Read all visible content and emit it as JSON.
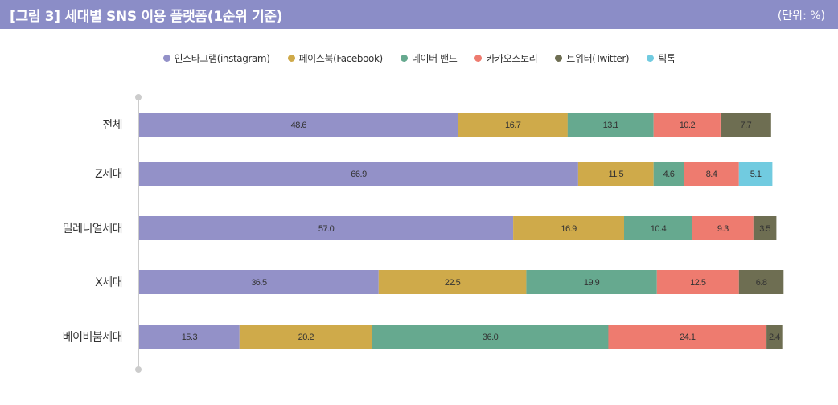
{
  "header": {
    "title": "[그림 3]  세대별 SNS 이용 플랫폼(1순위 기준)",
    "unit": "(단위: %)"
  },
  "colors": {
    "header_bg": "#8b8dc7",
    "axis": "#cccccc"
  },
  "chart_data": {
    "type": "bar",
    "orientation": "horizontal",
    "stacked": true,
    "categories": [
      "전체",
      "Z세대",
      "밀레니얼세대",
      "X세대",
      "베이비붐세대"
    ],
    "series": [
      {
        "name": "인스타그램(instagram)",
        "color": "#9391c8",
        "values": [
          48.6,
          66.9,
          57.0,
          36.5,
          15.3
        ],
        "labels": [
          "48.6",
          "66.9",
          "57.0",
          "36.5",
          "15.3"
        ]
      },
      {
        "name": "페이스북(Facebook)",
        "color": "#cfaa4a",
        "values": [
          16.7,
          11.5,
          16.9,
          22.5,
          20.2
        ],
        "labels": [
          "16.7",
          "11.5",
          "16.9",
          "22.5",
          "20.2"
        ]
      },
      {
        "name": "네이버 밴드",
        "color": "#66a98f",
        "values": [
          13.1,
          4.6,
          10.4,
          19.9,
          36.0
        ],
        "labels": [
          "13.1",
          "4.6",
          "10.4",
          "19.9",
          "36.0"
        ]
      },
      {
        "name": "카카오스토리",
        "color": "#ee7b6f",
        "values": [
          10.2,
          8.4,
          9.3,
          12.5,
          24.1
        ],
        "labels": [
          "10.2",
          "8.4",
          "9.3",
          "12.5",
          "24.1"
        ]
      },
      {
        "name": "트위터(Twitter)",
        "color": "#6e6e52",
        "values": [
          7.7,
          0,
          3.5,
          6.8,
          2.4
        ],
        "labels": [
          "7.7",
          "",
          "3.5",
          "6.8",
          "2.4"
        ]
      },
      {
        "name": "틱톡",
        "color": "#71cbe0",
        "values": [
          0,
          5.1,
          0,
          0,
          0
        ],
        "labels": [
          "",
          "5.1",
          "",
          "",
          ""
        ]
      }
    ],
    "z_generation_note": "Z세대 row order shown: 66.9, 11.5, 4.6, 8.4, 5.1",
    "legend_position": "top",
    "grid": false
  }
}
